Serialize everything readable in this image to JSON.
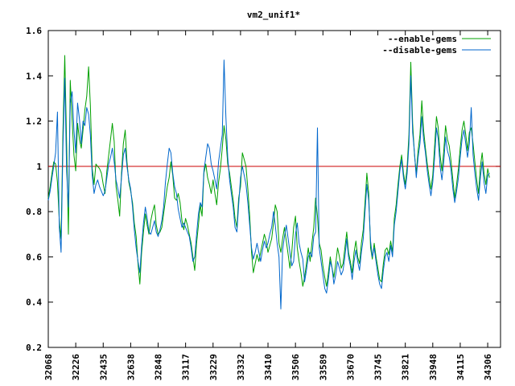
{
  "chart_data": {
    "type": "line",
    "title": "vm2_unif1*",
    "xlabel": "",
    "ylabel": "",
    "ylim": [
      0.2,
      1.6
    ],
    "yticks": [
      "0.2",
      "0.4",
      "0.6",
      "0.8",
      "1",
      "1.2",
      "1.4",
      "1.6"
    ],
    "xticks": [
      "32068",
      "32226",
      "32435",
      "32638",
      "32848",
      "33117",
      "33229",
      "33332",
      "33410",
      "33506",
      "33589",
      "33670",
      "33745",
      "33821",
      "33948",
      "34115",
      "34306"
    ],
    "xtick_positions": [
      0,
      15,
      30,
      45,
      60,
      75,
      90,
      105,
      120,
      135,
      150,
      165,
      180,
      195,
      210,
      225,
      240
    ],
    "x_count": 248,
    "legend_position": "top-right",
    "reference_line": {
      "y": 1.0,
      "color": "#cc0000"
    },
    "colors": {
      "enable": "#00a000",
      "disable": "#0066cc"
    },
    "series": [
      {
        "name": "--enable-gems",
        "color": "#00a000",
        "values": [
          0.86,
          0.91,
          0.97,
          1.02,
          1.01,
          0.93,
          0.76,
          0.68,
          1.15,
          1.49,
          1.1,
          0.7,
          1.38,
          1.21,
          1.05,
          0.98,
          1.19,
          1.12,
          1.08,
          1.16,
          1.25,
          1.31,
          1.44,
          1.27,
          0.99,
          0.92,
          1.01,
          1.0,
          0.99,
          0.97,
          0.92,
          0.88,
          0.98,
          1.05,
          1.12,
          1.19,
          1.11,
          0.91,
          0.85,
          0.78,
          0.97,
          1.1,
          1.16,
          1.02,
          0.93,
          0.89,
          0.84,
          0.75,
          0.69,
          0.57,
          0.48,
          0.62,
          0.71,
          0.79,
          0.74,
          0.7,
          0.76,
          0.8,
          0.83,
          0.74,
          0.7,
          0.71,
          0.73,
          0.79,
          0.85,
          0.91,
          0.95,
          1.02,
          0.96,
          0.86,
          0.85,
          0.88,
          0.84,
          0.76,
          0.72,
          0.77,
          0.74,
          0.7,
          0.66,
          0.6,
          0.54,
          0.66,
          0.74,
          0.83,
          0.78,
          0.97,
          1.01,
          0.95,
          0.92,
          0.88,
          0.94,
          0.88,
          0.83,
          0.93,
          0.99,
          1.08,
          1.18,
          1.12,
          1.01,
          0.97,
          0.91,
          0.85,
          0.77,
          0.73,
          0.86,
          0.91,
          1.06,
          1.03,
          1.0,
          0.9,
          0.78,
          0.62,
          0.53,
          0.57,
          0.61,
          0.58,
          0.62,
          0.66,
          0.7,
          0.67,
          0.62,
          0.65,
          0.68,
          0.75,
          0.83,
          0.8,
          0.66,
          0.62,
          0.68,
          0.73,
          0.67,
          0.61,
          0.55,
          0.62,
          0.73,
          0.78,
          0.64,
          0.58,
          0.53,
          0.47,
          0.51,
          0.57,
          0.64,
          0.58,
          0.66,
          0.73,
          0.86,
          0.78,
          0.66,
          0.63,
          0.56,
          0.51,
          0.47,
          0.53,
          0.6,
          0.55,
          0.51,
          0.57,
          0.64,
          0.6,
          0.55,
          0.57,
          0.64,
          0.71,
          0.62,
          0.58,
          0.53,
          0.62,
          0.67,
          0.6,
          0.57,
          0.66,
          0.72,
          0.84,
          0.97,
          0.88,
          0.64,
          0.59,
          0.66,
          0.6,
          0.55,
          0.5,
          0.49,
          0.57,
          0.63,
          0.64,
          0.61,
          0.67,
          0.62,
          0.77,
          0.83,
          0.92,
          1.0,
          1.05,
          0.97,
          0.92,
          1.0,
          1.14,
          1.46,
          1.19,
          1.05,
          0.97,
          1.07,
          1.14,
          1.29,
          1.16,
          1.08,
          1.01,
          0.95,
          0.9,
          0.96,
          1.09,
          1.22,
          1.17,
          1.05,
          0.98,
          1.07,
          1.18,
          1.12,
          1.09,
          1.02,
          0.94,
          0.86,
          0.92,
          0.99,
          1.08,
          1.16,
          1.2,
          1.14,
          1.07,
          1.15,
          1.17,
          1.1,
          1.02,
          0.94,
          0.88,
          1.0,
          1.06,
          0.97,
          0.92,
          0.99,
          0.95
        ]
      },
      {
        "name": "--disable-gems",
        "color": "#0066cc",
        "values": [
          0.85,
          0.89,
          0.95,
          1.0,
          1.06,
          1.24,
          0.73,
          0.62,
          1.08,
          1.39,
          0.98,
          0.82,
          1.28,
          1.33,
          1.16,
          1.06,
          1.28,
          1.21,
          1.1,
          1.2,
          1.18,
          1.26,
          1.23,
          1.14,
          0.96,
          0.88,
          0.92,
          0.94,
          0.91,
          0.89,
          0.87,
          0.89,
          0.95,
          1.01,
          1.04,
          1.08,
          1.02,
          0.94,
          0.9,
          0.86,
          0.95,
          1.05,
          1.08,
          1.0,
          0.94,
          0.9,
          0.82,
          0.72,
          0.64,
          0.58,
          0.53,
          0.65,
          0.75,
          0.82,
          0.77,
          0.71,
          0.7,
          0.73,
          0.76,
          0.71,
          0.69,
          0.72,
          0.76,
          0.82,
          0.93,
          1.01,
          1.08,
          1.06,
          0.97,
          0.91,
          0.88,
          0.81,
          0.77,
          0.73,
          0.75,
          0.73,
          0.71,
          0.69,
          0.64,
          0.58,
          0.6,
          0.7,
          0.79,
          0.84,
          0.82,
          0.98,
          1.04,
          1.1,
          1.08,
          1.01,
          0.98,
          0.94,
          0.9,
          1.02,
          1.08,
          1.14,
          1.47,
          1.22,
          1.04,
          0.94,
          0.88,
          0.82,
          0.73,
          0.71,
          0.83,
          0.95,
          1.0,
          0.96,
          0.92,
          0.84,
          0.74,
          0.64,
          0.59,
          0.62,
          0.66,
          0.62,
          0.58,
          0.63,
          0.67,
          0.64,
          0.66,
          0.7,
          0.73,
          0.8,
          0.74,
          0.66,
          0.6,
          0.37,
          0.63,
          0.69,
          0.74,
          0.68,
          0.62,
          0.56,
          0.58,
          0.7,
          0.75,
          0.66,
          0.62,
          0.59,
          0.49,
          0.54,
          0.6,
          0.62,
          0.6,
          0.69,
          0.71,
          1.17,
          0.64,
          0.58,
          0.52,
          0.46,
          0.44,
          0.5,
          0.58,
          0.55,
          0.48,
          0.52,
          0.58,
          0.55,
          0.52,
          0.54,
          0.6,
          0.68,
          0.6,
          0.56,
          0.5,
          0.58,
          0.63,
          0.58,
          0.54,
          0.62,
          0.68,
          0.8,
          0.92,
          0.85,
          0.67,
          0.6,
          0.64,
          0.58,
          0.52,
          0.48,
          0.46,
          0.54,
          0.6,
          0.62,
          0.58,
          0.65,
          0.6,
          0.74,
          0.8,
          0.89,
          0.98,
          1.03,
          0.95,
          0.9,
          0.97,
          1.1,
          1.4,
          1.15,
          1.06,
          0.95,
          1.04,
          1.1,
          1.22,
          1.12,
          1.06,
          0.98,
          0.92,
          0.87,
          0.93,
          1.04,
          1.17,
          1.12,
          1.0,
          0.94,
          1.02,
          1.13,
          1.07,
          1.04,
          0.98,
          0.9,
          0.84,
          0.89,
          0.95,
          1.04,
          1.12,
          1.16,
          1.1,
          1.04,
          1.1,
          1.26,
          1.05,
          0.97,
          0.9,
          0.85,
          0.95,
          1.02,
          0.93,
          0.88,
          0.96,
          0.97
        ]
      }
    ]
  }
}
